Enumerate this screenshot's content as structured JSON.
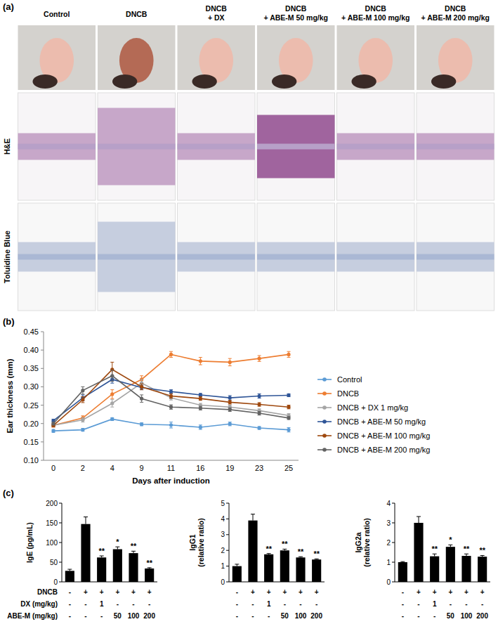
{
  "panel_labels": [
    "(a)",
    "(b)",
    "(c)"
  ],
  "image_grid": {
    "columns": [
      [
        "Control"
      ],
      [
        "DNCB"
      ],
      [
        "DNCB",
        "+ DX"
      ],
      [
        "DNCB",
        "+ ABE-M 50 mg/kg"
      ],
      [
        "DNCB",
        "+ ABE-M 100 mg/kg"
      ],
      [
        "DNCB",
        "+ ABE-M 200 mg/kg"
      ]
    ],
    "rows": [
      "H&E",
      "Toluidine Blue"
    ]
  },
  "bar_conditions": {
    "labels": [
      "DNCB",
      "DX (mg/kg)",
      "ABE-M (mg/kg)"
    ],
    "cells": [
      [
        "-",
        "+",
        "+",
        "+",
        "+",
        "+"
      ],
      [
        "-",
        "-",
        "1",
        "-",
        "-",
        "-"
      ],
      [
        "-",
        "-",
        "-",
        "50",
        "100",
        "200"
      ]
    ]
  },
  "chart_data": [
    {
      "type": "line",
      "x_label": "Days after induction",
      "y_label": "Ear thickness (mm)",
      "categories": [
        "0",
        "2",
        "4",
        "9",
        "11",
        "16",
        "19",
        "23",
        "25"
      ],
      "ylim": [
        0.1,
        0.45
      ],
      "yticks": [
        {
          "value": 0.1,
          "label": "0.10"
        },
        {
          "value": 0.15,
          "label": "0.15"
        },
        {
          "value": 0.2,
          "label": "0.20"
        },
        {
          "value": 0.25,
          "label": "0.25"
        },
        {
          "value": 0.3,
          "label": "0.30"
        },
        {
          "value": 0.35,
          "label": "0.35"
        },
        {
          "value": 0.4,
          "label": "0.40"
        },
        {
          "value": 0.45,
          "label": "0.45"
        }
      ],
      "legend": "right",
      "marker": "circle",
      "series": [
        {
          "name": "Control",
          "color": "#5b9bd5",
          "values": [
            0.18,
            0.183,
            0.212,
            0.198,
            0.196,
            0.19,
            0.199,
            0.188,
            0.183
          ],
          "errors": [
            0.004,
            0.004,
            0.004,
            0.004,
            0.008,
            0.006,
            0.005,
            0.004,
            0.006
          ]
        },
        {
          "name": "DNCB",
          "color": "#ed7d31",
          "values": [
            0.195,
            0.215,
            0.28,
            0.32,
            0.388,
            0.37,
            0.367,
            0.377,
            0.388
          ],
          "errors": [
            0.005,
            0.006,
            0.012,
            0.01,
            0.008,
            0.01,
            0.01,
            0.008,
            0.008
          ]
        },
        {
          "name": "DNCB + DX 1 mg/kg",
          "color": "#a5a5a5",
          "values": [
            0.195,
            0.21,
            0.255,
            0.31,
            0.27,
            0.25,
            0.245,
            0.235,
            0.222
          ],
          "errors": [
            0.004,
            0.006,
            0.01,
            0.01,
            0.006,
            0.005,
            0.005,
            0.005,
            0.005
          ]
        },
        {
          "name": "DNCB + ABE-M 50 mg/kg",
          "color": "#2f5597",
          "values": [
            0.208,
            0.27,
            0.32,
            0.298,
            0.287,
            0.278,
            0.27,
            0.275,
            0.277
          ],
          "errors": [
            0.004,
            0.008,
            0.01,
            0.006,
            0.005,
            0.004,
            0.006,
            0.006,
            0.004
          ]
        },
        {
          "name": "DNCB + ABE-M 100 mg/kg",
          "color": "#9e480e",
          "values": [
            0.195,
            0.265,
            0.347,
            0.3,
            0.275,
            0.268,
            0.258,
            0.252,
            0.245
          ],
          "errors": [
            0.004,
            0.008,
            0.02,
            0.008,
            0.006,
            0.005,
            0.005,
            0.005,
            0.005
          ]
        },
        {
          "name": "DNCB + ABE-M 200 mg/kg",
          "color": "#636363",
          "values": [
            0.2,
            0.29,
            0.33,
            0.268,
            0.245,
            0.242,
            0.238,
            0.228,
            0.215
          ],
          "errors": [
            0.004,
            0.01,
            0.015,
            0.01,
            0.006,
            0.005,
            0.005,
            0.005,
            0.004
          ]
        }
      ]
    },
    {
      "type": "bar",
      "y_label": "IgE (pg/mL)",
      "categories": [
        null,
        null,
        null,
        null,
        null,
        null
      ],
      "values": [
        28,
        147,
        62,
        83,
        73,
        34
      ],
      "errors": [
        4,
        18,
        4,
        6,
        5,
        2
      ],
      "annotations": [
        null,
        null,
        "**",
        "*",
        "**",
        "**"
      ],
      "color": "#000000",
      "ylim": [
        0,
        200
      ],
      "yticks": [
        0,
        50,
        100,
        150,
        200
      ]
    },
    {
      "type": "bar",
      "y_label": "IgG1\n(relative ratio)",
      "categories": [
        null,
        null,
        null,
        null,
        null,
        null
      ],
      "values": [
        1.0,
        3.9,
        1.75,
        2.0,
        1.55,
        1.42
      ],
      "errors": [
        0.12,
        0.4,
        0.05,
        0.08,
        0.05,
        0.04
      ],
      "annotations": [
        null,
        null,
        "**",
        "**",
        "**",
        "**"
      ],
      "color": "#000000",
      "ylim": [
        0,
        5
      ],
      "yticks": [
        0,
        1,
        2,
        3,
        4,
        5
      ]
    },
    {
      "type": "bar",
      "y_label": "IgG2a\n(relative ratio)",
      "categories": [
        null,
        null,
        null,
        null,
        null,
        null
      ],
      "values": [
        1.0,
        3.0,
        1.3,
        1.78,
        1.32,
        1.28
      ],
      "errors": [
        0.03,
        0.32,
        0.12,
        0.1,
        0.1,
        0.06
      ],
      "annotations": [
        null,
        null,
        "**",
        "*",
        "**",
        "**"
      ],
      "color": "#000000",
      "ylim": [
        0,
        4
      ],
      "yticks": [
        0,
        1,
        2,
        3,
        4
      ]
    }
  ]
}
